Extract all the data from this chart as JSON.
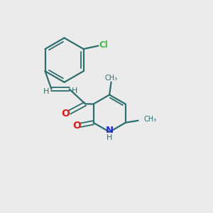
{
  "bg_color": "#ebebeb",
  "bond_color": "#2d6e6e",
  "cl_color": "#3cb843",
  "o_color": "#e02020",
  "n_color": "#2828d0",
  "figsize": [
    3.0,
    3.0
  ],
  "dpi": 100,
  "xlim": [
    0,
    10
  ],
  "ylim": [
    0,
    10
  ]
}
